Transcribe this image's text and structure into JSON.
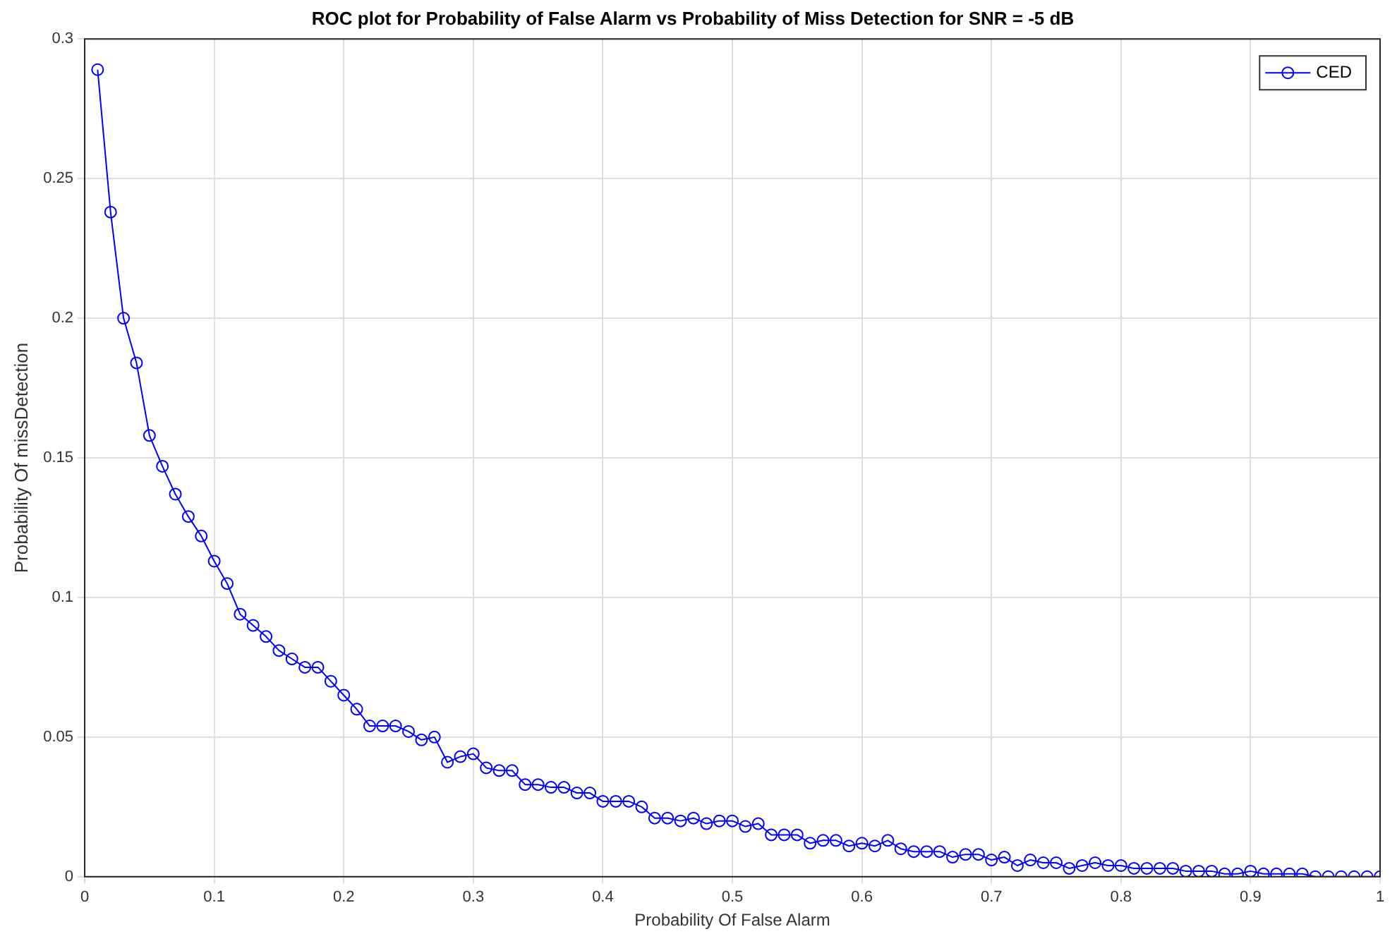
{
  "chart_data": {
    "type": "line",
    "title": "ROC plot for Probability of False Alarm vs Probability of Miss Detection for SNR = -5 dB",
    "xlabel": "Probability Of False Alarm",
    "ylabel": "Probability Of missDetection",
    "x": [
      0.01,
      0.02,
      0.03,
      0.04,
      0.05,
      0.06,
      0.07,
      0.08,
      0.09,
      0.1,
      0.11,
      0.12,
      0.13,
      0.14,
      0.15,
      0.16,
      0.17,
      0.18,
      0.19,
      0.2,
      0.21,
      0.22,
      0.23,
      0.24,
      0.25,
      0.26,
      0.27,
      0.28,
      0.29,
      0.3,
      0.31,
      0.32,
      0.33,
      0.34,
      0.35,
      0.36,
      0.37,
      0.38,
      0.39,
      0.4,
      0.41,
      0.42,
      0.43,
      0.44,
      0.45,
      0.46,
      0.47,
      0.48,
      0.49,
      0.5,
      0.51,
      0.52,
      0.53,
      0.54,
      0.55,
      0.56,
      0.57,
      0.58,
      0.59,
      0.6,
      0.61,
      0.62,
      0.63,
      0.64,
      0.65,
      0.66,
      0.67,
      0.68,
      0.69,
      0.7,
      0.71,
      0.72,
      0.73,
      0.74,
      0.75,
      0.76,
      0.77,
      0.78,
      0.79,
      0.8,
      0.81,
      0.82,
      0.83,
      0.84,
      0.85,
      0.86,
      0.87,
      0.88,
      0.89,
      0.9,
      0.91,
      0.92,
      0.93,
      0.94,
      0.95,
      0.96,
      0.97,
      0.98,
      0.99,
      1.0
    ],
    "series": [
      {
        "name": "CED",
        "color": "#0000ff",
        "values": [
          0.289,
          0.238,
          0.2,
          0.184,
          0.158,
          0.147,
          0.137,
          0.129,
          0.122,
          0.113,
          0.105,
          0.094,
          0.09,
          0.086,
          0.081,
          0.078,
          0.075,
          0.075,
          0.07,
          0.065,
          0.06,
          0.054,
          0.054,
          0.054,
          0.052,
          0.049,
          0.05,
          0.041,
          0.043,
          0.044,
          0.039,
          0.038,
          0.038,
          0.033,
          0.033,
          0.032,
          0.032,
          0.03,
          0.03,
          0.027,
          0.027,
          0.027,
          0.025,
          0.021,
          0.021,
          0.02,
          0.021,
          0.019,
          0.02,
          0.02,
          0.018,
          0.019,
          0.015,
          0.015,
          0.015,
          0.012,
          0.013,
          0.013,
          0.011,
          0.012,
          0.011,
          0.013,
          0.01,
          0.009,
          0.009,
          0.009,
          0.007,
          0.008,
          0.008,
          0.006,
          0.007,
          0.004,
          0.006,
          0.005,
          0.005,
          0.003,
          0.004,
          0.005,
          0.004,
          0.004,
          0.003,
          0.003,
          0.003,
          0.003,
          0.002,
          0.002,
          0.002,
          0.001,
          0.001,
          0.002,
          0.001,
          0.001,
          0.001,
          0.001,
          0.0,
          0.0,
          0.0,
          0.0,
          0.0,
          0.0
        ]
      }
    ],
    "xlim": [
      0,
      1
    ],
    "xticks": [
      0,
      0.1,
      0.2,
      0.3,
      0.4,
      0.5,
      0.6,
      0.7,
      0.8,
      0.9,
      1
    ],
    "ylim": [
      0,
      0.3
    ],
    "yticks": [
      0,
      0.05,
      0.1,
      0.15,
      0.2,
      0.25,
      0.3
    ],
    "grid": true,
    "legend": "top right",
    "marker": "circle",
    "line_style": "solid"
  }
}
